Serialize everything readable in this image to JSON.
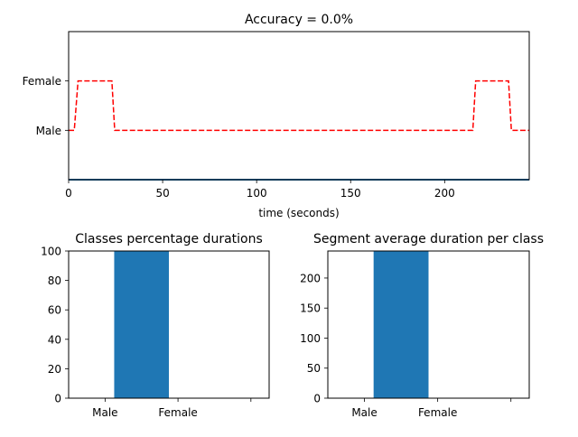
{
  "chart_data": [
    {
      "type": "line",
      "title": "Accuracy = 0.0%",
      "xlabel": "time (seconds)",
      "ylabel": "",
      "xlim": [
        0,
        245
      ],
      "ylim": [
        -1,
        2
      ],
      "xticks": [
        0,
        50,
        100,
        150,
        200
      ],
      "yticks": [
        0,
        1
      ],
      "ytick_labels": [
        "Male",
        "Female"
      ],
      "grid": false,
      "series": [
        {
          "style": "dashed",
          "color": "#ff0000",
          "x": [
            0,
            3,
            5,
            23,
            24.5,
            215,
            216.5,
            234,
            235.5,
            245
          ],
          "y": [
            0,
            0,
            1,
            1,
            0,
            0,
            1,
            1,
            0,
            0
          ]
        },
        {
          "style": "solid",
          "color": "#1f77b4",
          "x": [
            0,
            245
          ],
          "y": [
            -1,
            -1
          ]
        }
      ]
    },
    {
      "type": "bar",
      "title": "Classes percentage durations",
      "categories": [
        "Male",
        "Female"
      ],
      "values": [
        100,
        0
      ],
      "bar_center_x": 1.5,
      "bar_width": 0.75,
      "xlim": [
        0.5,
        3.25
      ],
      "ylim": [
        0,
        100
      ],
      "yticks": [
        0,
        20,
        40,
        60,
        80,
        100
      ],
      "color": "#1f77b4"
    },
    {
      "type": "bar",
      "title": "Segment average duration per class",
      "categories": [
        "Male",
        "Female"
      ],
      "values": [
        245,
        0
      ],
      "bar_center_x": 1.5,
      "bar_width": 0.75,
      "xlim": [
        0.5,
        3.25
      ],
      "ylim": [
        0,
        245
      ],
      "yticks": [
        0,
        50,
        100,
        150,
        200
      ],
      "color": "#1f77b4"
    }
  ]
}
